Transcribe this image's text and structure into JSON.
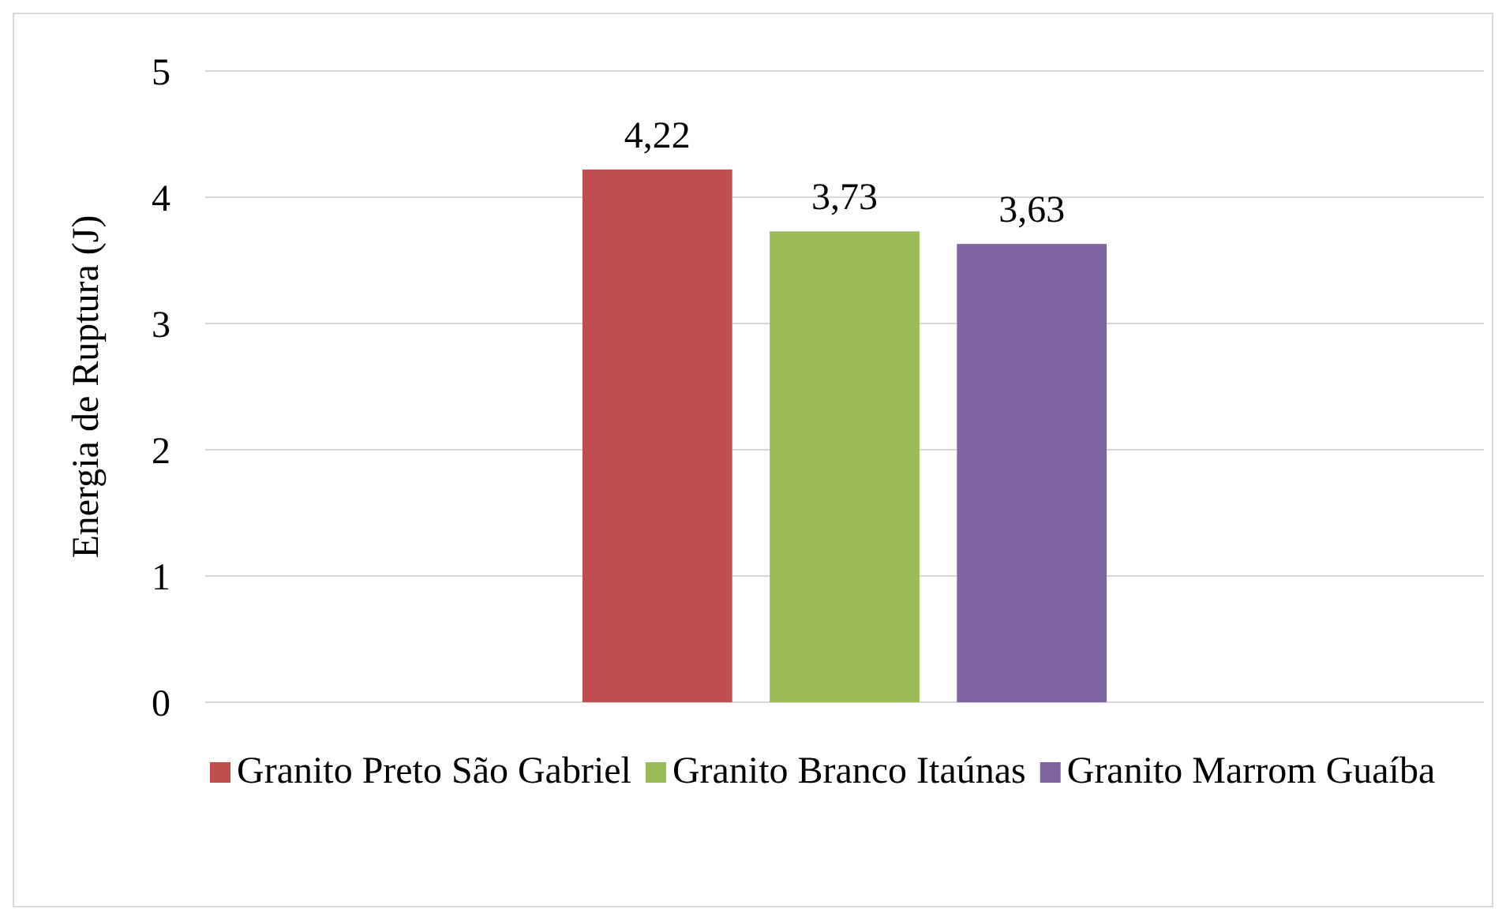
{
  "chart_data": {
    "type": "bar",
    "ylabel": "Energia de Ruptura (J)",
    "categories": [
      null
    ],
    "series": [
      {
        "name": "Granito Preto São Gabriel",
        "color": "#c0504d",
        "values": [
          4.22
        ],
        "value_labels": [
          "4,22"
        ]
      },
      {
        "name": "Granito Branco Itaúnas",
        "color": "#9bbb59",
        "values": [
          3.73
        ],
        "value_labels": [
          "3,73"
        ]
      },
      {
        "name": "Granito Marrom Guaíba",
        "color": "#8064a2",
        "values": [
          3.63
        ],
        "value_labels": [
          "3,63"
        ]
      }
    ],
    "ylim": [
      0,
      5
    ],
    "yticks": [
      0,
      1,
      2,
      3,
      4,
      5
    ],
    "grid": "y",
    "legend": "bottom"
  }
}
